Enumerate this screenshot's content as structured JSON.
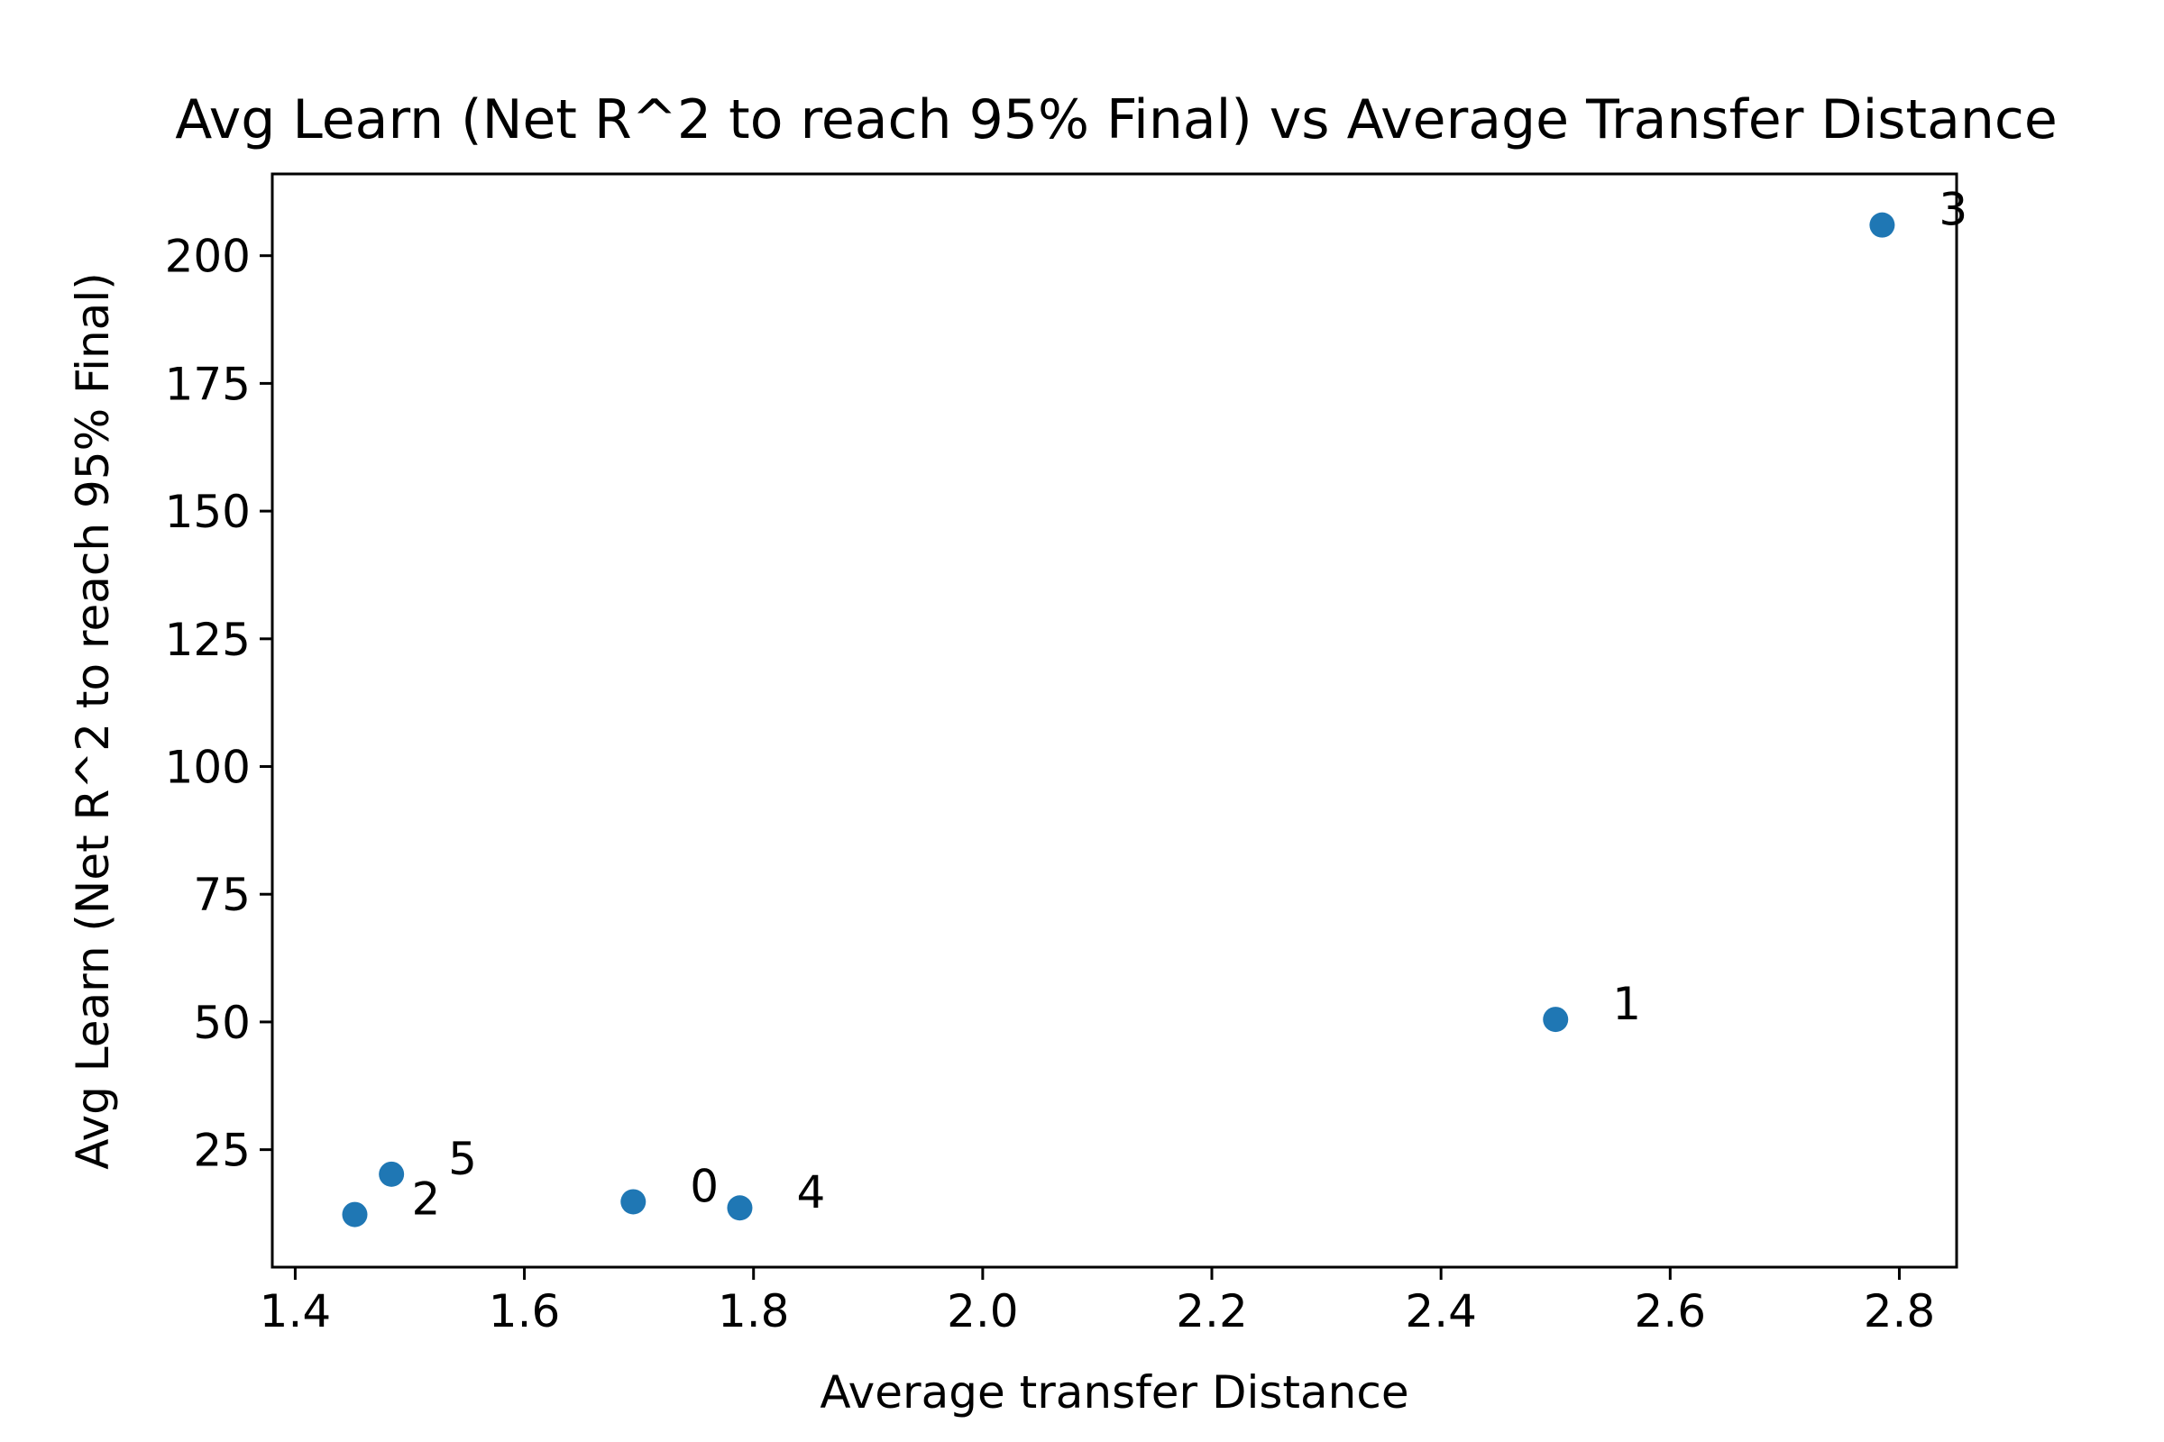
{
  "chart_data": {
    "type": "scatter",
    "title": "Avg Learn (Net R^2 to reach 95% Final) vs Average Transfer Distance",
    "xlabel": "Average transfer Distance",
    "ylabel": "Avg Learn (Net R^2 to reach 95% Final)",
    "xlim": [
      1.38,
      2.85
    ],
    "ylim": [
      2,
      216
    ],
    "grid": false,
    "marker_color": "#1f77b4",
    "x_ticks": [
      1.4,
      1.6,
      1.8,
      2.0,
      2.2,
      2.4,
      2.6,
      2.8
    ],
    "x_tick_labels": [
      "1.4",
      "1.6",
      "1.8",
      "2.0",
      "2.2",
      "2.4",
      "2.6",
      "2.8"
    ],
    "y_ticks": [
      25,
      50,
      75,
      100,
      125,
      150,
      175,
      200
    ],
    "y_tick_labels": [
      "25",
      "50",
      "75",
      "100",
      "125",
      "150",
      "175",
      "200"
    ],
    "points": [
      {
        "label": "0",
        "x": 1.695,
        "y": 14.8
      },
      {
        "label": "1",
        "x": 2.5,
        "y": 50.5
      },
      {
        "label": "2",
        "x": 1.452,
        "y": 12.3
      },
      {
        "label": "3",
        "x": 2.785,
        "y": 206
      },
      {
        "label": "4",
        "x": 1.788,
        "y": 13.6
      },
      {
        "label": "5",
        "x": 1.484,
        "y": 20.2
      }
    ]
  }
}
